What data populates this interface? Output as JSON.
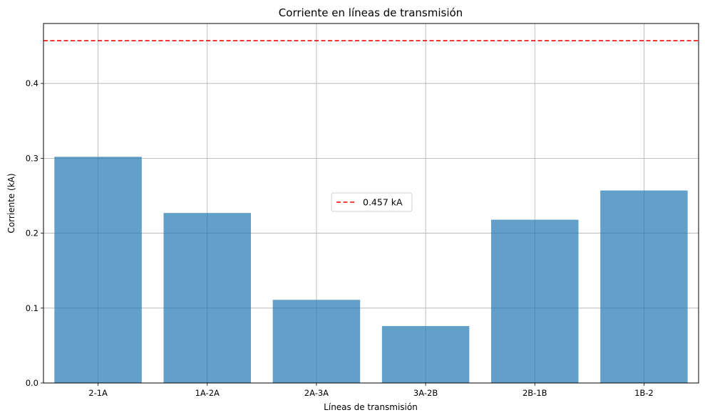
{
  "chart_data": {
    "type": "bar",
    "title": "Corriente en líneas de transmisión",
    "xlabel": "Líneas de transmisión",
    "ylabel": "Corriente (kA)",
    "categories": [
      "2-1A",
      "1A-2A",
      "2A-3A",
      "3A-2B",
      "2B-1B",
      "1B-2"
    ],
    "values": [
      0.302,
      0.227,
      0.111,
      0.076,
      0.218,
      0.257
    ],
    "ylim": [
      0,
      0.48
    ],
    "yticks": [
      0.0,
      0.1,
      0.2,
      0.3,
      0.4
    ],
    "ytick_labels": [
      "0.0",
      "0.1",
      "0.2",
      "0.3",
      "0.4"
    ],
    "grid": true,
    "bar_color": "#1f77b4",
    "reference_line": {
      "value": 0.457,
      "label": "0.457 kA",
      "color": "#ff0000",
      "style": "dashed"
    },
    "legend": {
      "position": "center",
      "entries": [
        "0.457 kA"
      ]
    }
  }
}
